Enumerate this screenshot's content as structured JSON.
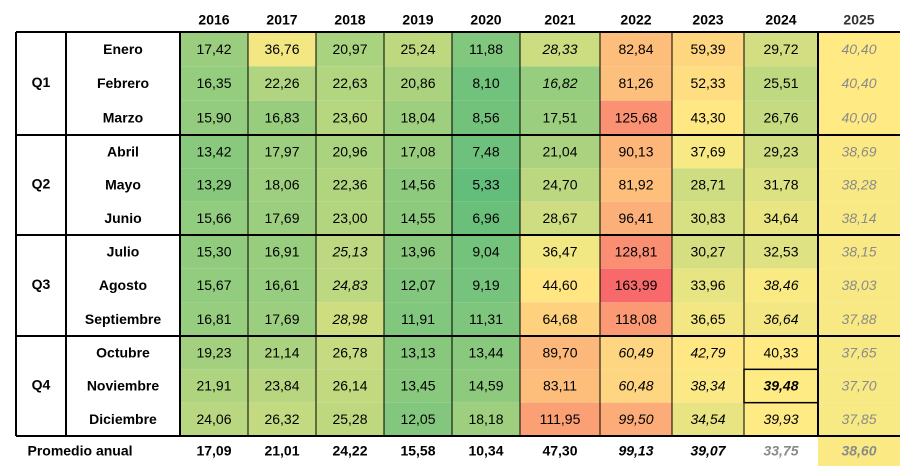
{
  "chart_data": {
    "type": "heatmap",
    "years": [
      "2016",
      "2017",
      "2018",
      "2019",
      "2020",
      "2021",
      "2022",
      "2023",
      "2024",
      "2025"
    ],
    "quarters": [
      {
        "label": "Q1",
        "months": [
          "Enero",
          "Febrero",
          "Marzo"
        ]
      },
      {
        "label": "Q2",
        "months": [
          "Abril",
          "Mayo",
          "Junio"
        ]
      },
      {
        "label": "Q3",
        "months": [
          "Julio",
          "Agosto",
          "Septiembre"
        ]
      },
      {
        "label": "Q4",
        "months": [
          "Octubre",
          "Noviembre",
          "Diciembre"
        ]
      }
    ],
    "values": [
      [
        "17,42",
        "36,76",
        "20,97",
        "25,24",
        "11,88",
        "28,33",
        "82,84",
        "59,39",
        "29,72",
        "40,40"
      ],
      [
        "16,35",
        "22,26",
        "22,63",
        "20,86",
        "8,10",
        "16,82",
        "81,26",
        "52,33",
        "25,51",
        "40,40"
      ],
      [
        "15,90",
        "16,83",
        "23,60",
        "18,04",
        "8,56",
        "17,51",
        "125,68",
        "43,30",
        "26,76",
        "40,00"
      ],
      [
        "13,42",
        "17,97",
        "20,96",
        "17,08",
        "7,48",
        "21,04",
        "90,13",
        "37,69",
        "29,23",
        "38,69"
      ],
      [
        "13,29",
        "18,06",
        "22,36",
        "14,56",
        "5,33",
        "24,70",
        "81,92",
        "28,71",
        "31,78",
        "38,28"
      ],
      [
        "15,66",
        "17,69",
        "23,00",
        "14,55",
        "6,96",
        "28,67",
        "96,41",
        "30,83",
        "34,64",
        "38,14"
      ],
      [
        "15,30",
        "16,91",
        "25,13",
        "13,96",
        "9,04",
        "36,47",
        "128,81",
        "30,27",
        "32,53",
        "38,15"
      ],
      [
        "15,67",
        "16,61",
        "24,83",
        "12,07",
        "9,19",
        "44,60",
        "163,99",
        "33,96",
        "38,46",
        "38,03"
      ],
      [
        "16,81",
        "17,69",
        "28,98",
        "11,91",
        "11,31",
        "64,68",
        "118,08",
        "36,65",
        "36,64",
        "37,88"
      ],
      [
        "19,23",
        "21,14",
        "26,78",
        "13,13",
        "13,44",
        "89,70",
        "60,49",
        "42,79",
        "40,33",
        "37,65"
      ],
      [
        "21,91",
        "23,84",
        "26,14",
        "13,45",
        "14,59",
        "83,11",
        "60,48",
        "38,34",
        "39,48",
        "37,70"
      ],
      [
        "24,06",
        "26,32",
        "25,28",
        "12,05",
        "18,18",
        "111,95",
        "99,50",
        "34,54",
        "39,93",
        "37,85"
      ]
    ],
    "italic_cells": [
      [
        0,
        5
      ],
      [
        1,
        5
      ],
      [
        6,
        2
      ],
      [
        7,
        2
      ],
      [
        8,
        2
      ],
      [
        7,
        8
      ],
      [
        8,
        8
      ],
      [
        9,
        6
      ],
      [
        9,
        7
      ],
      [
        10,
        6
      ],
      [
        10,
        7
      ],
      [
        11,
        6
      ],
      [
        11,
        7
      ],
      [
        10,
        8
      ],
      [
        11,
        8
      ]
    ],
    "bold_cells": [
      [
        10,
        8
      ]
    ],
    "annual_label": "Promedio anual",
    "annual_average": [
      "17,09",
      "21,01",
      "24,22",
      "15,58",
      "10,34",
      "47,30",
      "99,13",
      "39,07",
      "33,75",
      "38,60"
    ],
    "annual_italic": [
      6,
      7,
      8,
      9
    ],
    "value_range": [
      5.33,
      163.99
    ],
    "color_scale": {
      "low": "#63BE7B",
      "mid": "#FFEB84",
      "high": "#F8696B",
      "mid_value": 39.5
    }
  }
}
